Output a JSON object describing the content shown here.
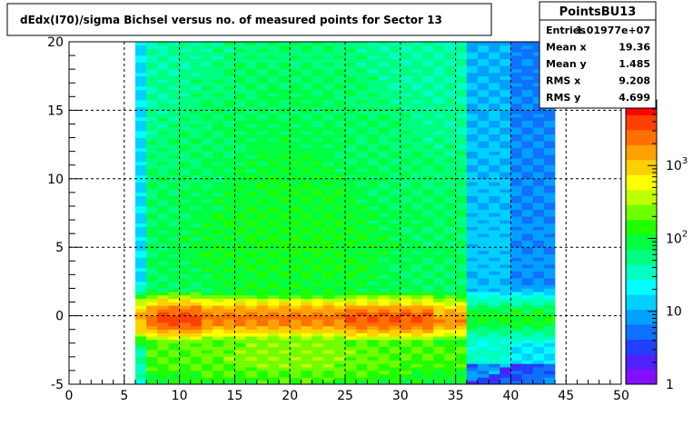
{
  "chart_data": {
    "type": "heatmap",
    "title": "dEdx(I70)/sigma Bichsel versus no. of measured points for Sector 13",
    "xlabel": "",
    "ylabel": "",
    "xlim": [
      0,
      50
    ],
    "ylim": [
      -5,
      20
    ],
    "x_ticks": [
      "0",
      "5",
      "10",
      "15",
      "20",
      "25",
      "30",
      "35",
      "40",
      "45",
      "50"
    ],
    "y_ticks": [
      "-5",
      "0",
      "5",
      "10",
      "15",
      "20"
    ],
    "z_scale": "log",
    "z_ticks": [
      {
        "base": "1",
        "exp": ""
      },
      {
        "base": "10",
        "exp": ""
      },
      {
        "base": "10",
        "exp": "2"
      },
      {
        "base": "10",
        "exp": "3"
      }
    ],
    "grid": true,
    "colors": {
      "palette": [
        "#8010ff",
        "#5020ff",
        "#2040ff",
        "#1070ff",
        "#00a0ff",
        "#00d0ff",
        "#00ffff",
        "#00ffc0",
        "#00ff80",
        "#00ff40",
        "#20ff00",
        "#70ff00",
        "#c0ff00",
        "#ffff00",
        "#ffd000",
        "#ffa000",
        "#ff7000",
        "#ff4000",
        "#ff0000"
      ]
    },
    "stats": {
      "name": "PointsBU13",
      "rows": [
        {
          "label": "Entries",
          "value": "1.01977e+07"
        },
        {
          "label": "Mean x",
          "value": "19.36"
        },
        {
          "label": "Mean y",
          "value": "1.485"
        },
        {
          "label": "RMS x",
          "value": "9.208"
        },
        {
          "label": "RMS y",
          "value": "4.699"
        }
      ]
    }
  }
}
